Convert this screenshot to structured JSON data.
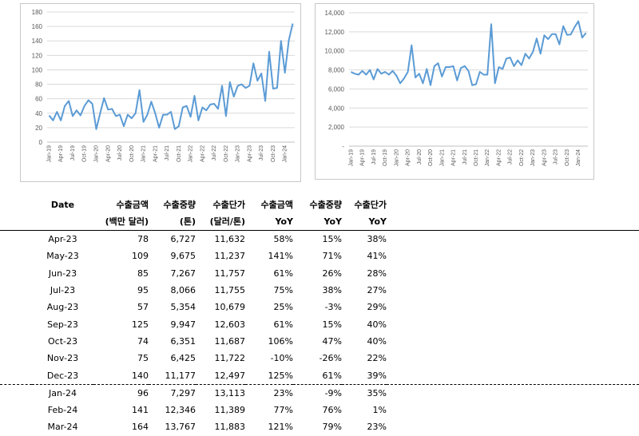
{
  "chart_data": [
    {
      "type": "line",
      "title": "",
      "xlabel": "",
      "ylabel": "",
      "ylim": [
        0,
        180
      ],
      "yticks": [
        0,
        20,
        40,
        60,
        80,
        100,
        120,
        140,
        160,
        180
      ],
      "x_tick_labels": [
        "Jan-19",
        "Apr-19",
        "Jul-19",
        "Oct-19",
        "Jan-20",
        "Apr-20",
        "Jul-20",
        "Oct-20",
        "Jan-21",
        "Apr-21",
        "Jul-21",
        "Oct-21",
        "Jan-22",
        "Apr-22",
        "Jul-22",
        "Oct-22",
        "Jan-23",
        "Apr-23",
        "Jul-23",
        "Oct-23",
        "Jan-24"
      ],
      "grid": true,
      "series_color": "#5b9bd5",
      "series": [
        {
          "x": [
            "Jan-19",
            "Feb-19",
            "Mar-19",
            "Apr-19",
            "May-19",
            "Jun-19",
            "Jul-19",
            "Aug-19",
            "Sep-19",
            "Oct-19",
            "Nov-19",
            "Dec-19",
            "Jan-20",
            "Feb-20",
            "Mar-20",
            "Apr-20",
            "May-20",
            "Jun-20",
            "Jul-20",
            "Aug-20",
            "Sep-20",
            "Oct-20",
            "Nov-20",
            "Dec-20",
            "Jan-21",
            "Feb-21",
            "Mar-21",
            "Apr-21",
            "May-21",
            "Jun-21",
            "Jul-21",
            "Aug-21",
            "Sep-21",
            "Oct-21",
            "Nov-21",
            "Dec-21",
            "Jan-22",
            "Feb-22",
            "Mar-22",
            "Apr-22",
            "May-22",
            "Jun-22",
            "Jul-22",
            "Aug-22",
            "Sep-22",
            "Oct-22",
            "Nov-22",
            "Dec-22",
            "Jan-23",
            "Feb-23",
            "Mar-23",
            "Apr-23",
            "May-23",
            "Jun-23",
            "Jul-23",
            "Aug-23",
            "Sep-23",
            "Oct-23",
            "Nov-23",
            "Dec-23",
            "Jan-24",
            "Feb-24",
            "Mar-24"
          ],
          "values": [
            37,
            30,
            42,
            30,
            50,
            57,
            36,
            44,
            37,
            50,
            58,
            53,
            18,
            40,
            61,
            45,
            46,
            36,
            38,
            22,
            38,
            33,
            40,
            72,
            28,
            38,
            56,
            40,
            20,
            38,
            38,
            42,
            18,
            22,
            48,
            50,
            35,
            64,
            30,
            48,
            44,
            52,
            53,
            46,
            78,
            36,
            83,
            63,
            78,
            80,
            75,
            78,
            109,
            85,
            95,
            57,
            125,
            74,
            75,
            140,
            96,
            141,
            164
          ]
        }
      ]
    },
    {
      "type": "line",
      "title": "",
      "xlabel": "",
      "ylabel": "",
      "ylim": [
        0,
        14000
      ],
      "yticks": [
        0,
        2000,
        4000,
        6000,
        8000,
        10000,
        12000,
        14000
      ],
      "ytick_labels": [
        "-",
        "2,000",
        "4,000",
        "6,000",
        "8,000",
        "10,000",
        "12,000",
        "14,000"
      ],
      "x_tick_labels": [
        "Jan-19",
        "Apr-19",
        "Jul-19",
        "Oct-19",
        "Jan-20",
        "Apr-20",
        "Jul-20",
        "Oct-20",
        "Jan-21",
        "Apr-21",
        "Jul-21",
        "Oct-21",
        "Jan-22",
        "Apr-22",
        "Jul-22",
        "Oct-22",
        "Jan-23",
        "Apr-23",
        "Jul-23",
        "Oct-23",
        "Jan-24"
      ],
      "grid": true,
      "series_color": "#5b9bd5",
      "series": [
        {
          "x": [
            "Jan-19",
            "Feb-19",
            "Mar-19",
            "Apr-19",
            "May-19",
            "Jun-19",
            "Jul-19",
            "Aug-19",
            "Sep-19",
            "Oct-19",
            "Nov-19",
            "Dec-19",
            "Jan-20",
            "Feb-20",
            "Mar-20",
            "Apr-20",
            "May-20",
            "Jun-20",
            "Jul-20",
            "Aug-20",
            "Sep-20",
            "Oct-20",
            "Nov-20",
            "Dec-20",
            "Jan-21",
            "Feb-21",
            "Mar-21",
            "Apr-21",
            "May-21",
            "Jun-21",
            "Jul-21",
            "Aug-21",
            "Sep-21",
            "Oct-21",
            "Nov-21",
            "Dec-21",
            "Jan-22",
            "Feb-22",
            "Mar-22",
            "Apr-22",
            "May-22",
            "Jun-22",
            "Jul-22",
            "Aug-22",
            "Sep-22",
            "Oct-22",
            "Nov-22",
            "Dec-22",
            "Jan-23",
            "Feb-23",
            "Mar-23",
            "Apr-23",
            "May-23",
            "Jun-23",
            "Jul-23",
            "Aug-23",
            "Sep-23",
            "Oct-23",
            "Nov-23",
            "Dec-23",
            "Jan-24",
            "Feb-24",
            "Mar-24"
          ],
          "values": [
            7800,
            7600,
            7500,
            7900,
            7500,
            8000,
            7000,
            8100,
            7600,
            7800,
            7500,
            7900,
            7400,
            6600,
            7100,
            7800,
            10600,
            7200,
            7600,
            6600,
            8100,
            6400,
            8400,
            8700,
            7300,
            8300,
            8300,
            8400,
            6900,
            8200,
            8400,
            7900,
            6400,
            6500,
            7800,
            7500,
            7500,
            12800,
            6600,
            8300,
            8100,
            9200,
            9300,
            8400,
            9000,
            8500,
            9700,
            9200,
            9900,
            11300,
            9700,
            11632,
            11237,
            11757,
            11755,
            10679,
            12603,
            11687,
            11722,
            12497,
            13113,
            11389,
            11883
          ]
        }
      ]
    }
  ],
  "table": {
    "headers": [
      {
        "line1": "Date",
        "line2": ""
      },
      {
        "line1": "수출금액",
        "line2": "(백만 달러)"
      },
      {
        "line1": "수출중량",
        "line2": "(톤)"
      },
      {
        "line1": "수출단가",
        "line2": "(달러/톤)"
      },
      {
        "line1": "수출금액",
        "line2": "YoY"
      },
      {
        "line1": "수출중량",
        "line2": "YoY"
      },
      {
        "line1": "수출단가",
        "line2": "YoY"
      }
    ],
    "rows": [
      [
        "Apr-23",
        "78",
        "6,727",
        "11,632",
        "58%",
        "15%",
        "38%"
      ],
      [
        "May-23",
        "109",
        "9,675",
        "11,237",
        "141%",
        "71%",
        "41%"
      ],
      [
        "Jun-23",
        "85",
        "7,267",
        "11,757",
        "61%",
        "26%",
        "28%"
      ],
      [
        "Jul-23",
        "95",
        "8,066",
        "11,755",
        "75%",
        "38%",
        "27%"
      ],
      [
        "Aug-23",
        "57",
        "5,354",
        "10,679",
        "25%",
        "-3%",
        "29%"
      ],
      [
        "Sep-23",
        "125",
        "9,947",
        "12,603",
        "61%",
        "15%",
        "40%"
      ],
      [
        "Oct-23",
        "74",
        "6,351",
        "11,687",
        "106%",
        "47%",
        "40%"
      ],
      [
        "Nov-23",
        "75",
        "6,425",
        "11,722",
        "-10%",
        "-26%",
        "22%"
      ],
      [
        "Dec-23",
        "140",
        "11,177",
        "12,497",
        "125%",
        "61%",
        "39%"
      ],
      [
        "Jan-24",
        "96",
        "7,297",
        "13,113",
        "23%",
        "-9%",
        "35%"
      ],
      [
        "Feb-24",
        "141",
        "12,346",
        "11,389",
        "77%",
        "76%",
        "1%"
      ],
      [
        "Mar-24",
        "164",
        "13,767",
        "11,883",
        "121%",
        "79%",
        "23%"
      ]
    ]
  }
}
